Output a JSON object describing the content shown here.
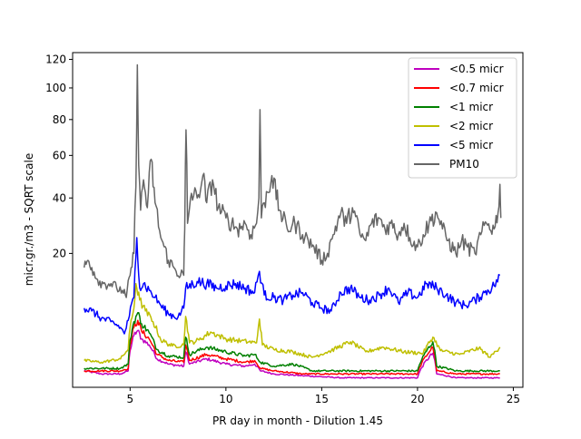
{
  "chart_data": {
    "type": "line",
    "title": "",
    "xlabel": "PR day in month - Dilution 1.45",
    "ylabel": "micr.gr./m3 - SQRT scale",
    "y_scale": "sqrt",
    "xlim": [
      2.0,
      25.5
    ],
    "ylim": [
      0,
      125
    ],
    "x_ticks": [
      5,
      10,
      15,
      20,
      25
    ],
    "y_ticks": [
      20,
      40,
      60,
      80,
      100,
      120
    ],
    "grid": false,
    "legend_position": "top-right",
    "series": [
      {
        "name": "<0.5 micr",
        "color": "#bf00bf",
        "points": [
          [
            2.6,
            0.3
          ],
          [
            3.5,
            0.2
          ],
          [
            4.5,
            0.2
          ],
          [
            4.9,
            0.3
          ],
          [
            5.0,
            1.5
          ],
          [
            5.2,
            3.0
          ],
          [
            5.4,
            3.6
          ],
          [
            5.6,
            2.6
          ],
          [
            6.0,
            2.0
          ],
          [
            6.4,
            0.9
          ],
          [
            7.0,
            0.6
          ],
          [
            7.8,
            0.5
          ],
          [
            7.9,
            1.4
          ],
          [
            8.1,
            0.6
          ],
          [
            9.0,
            0.9
          ],
          [
            10.0,
            0.6
          ],
          [
            11.0,
            0.5
          ],
          [
            11.5,
            0.6
          ],
          [
            11.8,
            0.3
          ],
          [
            12.5,
            0.2
          ],
          [
            14.0,
            0.15
          ],
          [
            16.0,
            0.1
          ],
          [
            18.0,
            0.1
          ],
          [
            20.0,
            0.1
          ],
          [
            20.8,
            1.3
          ],
          [
            21.0,
            0.2
          ],
          [
            22.0,
            0.1
          ],
          [
            24.3,
            0.1
          ]
        ]
      },
      {
        "name": "<0.7 micr",
        "color": "#ff0000",
        "points": [
          [
            2.6,
            0.3
          ],
          [
            3.5,
            0.3
          ],
          [
            4.5,
            0.3
          ],
          [
            4.9,
            0.4
          ],
          [
            5.0,
            2.0
          ],
          [
            5.2,
            4.0
          ],
          [
            5.4,
            5.0
          ],
          [
            5.6,
            3.5
          ],
          [
            6.0,
            2.6
          ],
          [
            6.4,
            1.2
          ],
          [
            7.0,
            0.8
          ],
          [
            7.8,
            0.7
          ],
          [
            7.9,
            2.0
          ],
          [
            8.1,
            0.8
          ],
          [
            9.0,
            1.2
          ],
          [
            10.0,
            0.9
          ],
          [
            11.0,
            0.7
          ],
          [
            11.5,
            0.8
          ],
          [
            11.8,
            0.4
          ],
          [
            12.5,
            0.3
          ],
          [
            14.0,
            0.2
          ],
          [
            16.0,
            0.2
          ],
          [
            18.0,
            0.2
          ],
          [
            20.0,
            0.2
          ],
          [
            20.8,
            1.8
          ],
          [
            21.0,
            0.3
          ],
          [
            22.0,
            0.2
          ],
          [
            24.3,
            0.2
          ]
        ]
      },
      {
        "name": "<1 micr",
        "color": "#008000",
        "points": [
          [
            2.6,
            0.4
          ],
          [
            3.5,
            0.4
          ],
          [
            4.5,
            0.4
          ],
          [
            4.9,
            0.6
          ],
          [
            5.0,
            2.5
          ],
          [
            5.2,
            4.8
          ],
          [
            5.4,
            6.2
          ],
          [
            5.6,
            4.5
          ],
          [
            6.0,
            3.3
          ],
          [
            6.4,
            1.6
          ],
          [
            7.0,
            1.1
          ],
          [
            7.8,
            1.0
          ],
          [
            7.9,
            2.8
          ],
          [
            8.1,
            1.2
          ],
          [
            9.0,
            1.8
          ],
          [
            10.0,
            1.4
          ],
          [
            11.0,
            1.1
          ],
          [
            11.5,
            1.2
          ],
          [
            11.8,
            0.7
          ],
          [
            12.5,
            0.5
          ],
          [
            13.5,
            0.6
          ],
          [
            14.5,
            0.3
          ],
          [
            16.0,
            0.3
          ],
          [
            18.0,
            0.3
          ],
          [
            20.0,
            0.3
          ],
          [
            20.8,
            2.3
          ],
          [
            21.0,
            0.5
          ],
          [
            22.0,
            0.3
          ],
          [
            24.3,
            0.3
          ]
        ]
      },
      {
        "name": "<2 micr",
        "color": "#bfbf00",
        "points": [
          [
            2.6,
            0.8
          ],
          [
            3.5,
            0.7
          ],
          [
            4.5,
            0.9
          ],
          [
            4.9,
            1.6
          ],
          [
            5.0,
            4.0
          ],
          [
            5.2,
            7.0
          ],
          [
            5.3,
            12.0
          ],
          [
            5.5,
            8.5
          ],
          [
            5.8,
            6.5
          ],
          [
            6.2,
            4.8
          ],
          [
            6.6,
            2.5
          ],
          [
            7.2,
            1.9
          ],
          [
            7.8,
            2.0
          ],
          [
            7.9,
            5.6
          ],
          [
            8.1,
            2.2
          ],
          [
            8.6,
            2.5
          ],
          [
            9.2,
            3.4
          ],
          [
            10.0,
            2.6
          ],
          [
            10.8,
            2.4
          ],
          [
            11.6,
            2.2
          ],
          [
            11.75,
            5.2
          ],
          [
            11.9,
            2.0
          ],
          [
            12.5,
            1.6
          ],
          [
            13.5,
            1.4
          ],
          [
            14.5,
            1.0
          ],
          [
            15.5,
            1.5
          ],
          [
            16.5,
            2.3
          ],
          [
            17.3,
            1.4
          ],
          [
            18.2,
            1.8
          ],
          [
            19.3,
            1.4
          ],
          [
            20.3,
            1.3
          ],
          [
            20.8,
            2.8
          ],
          [
            21.2,
            1.5
          ],
          [
            22.2,
            1.2
          ],
          [
            23.2,
            1.7
          ],
          [
            23.8,
            1.0
          ],
          [
            24.3,
            1.8
          ]
        ]
      },
      {
        "name": "<5 micr",
        "color": "#0000ff",
        "points": [
          [
            2.6,
            7.0
          ],
          [
            3.0,
            6.5
          ],
          [
            3.5,
            5.3
          ],
          [
            4.0,
            4.8
          ],
          [
            4.5,
            4.0
          ],
          [
            4.7,
            3.2
          ],
          [
            4.9,
            5.0
          ],
          [
            5.2,
            9.0
          ],
          [
            5.35,
            25.0
          ],
          [
            5.5,
            11.0
          ],
          [
            5.7,
            12.0
          ],
          [
            6.0,
            10.5
          ],
          [
            6.3,
            9.0
          ],
          [
            6.6,
            7.5
          ],
          [
            7.0,
            6.0
          ],
          [
            7.5,
            5.5
          ],
          [
            7.8,
            7.0
          ],
          [
            7.9,
            11.0
          ],
          [
            8.5,
            12.5
          ],
          [
            9.0,
            12.0
          ],
          [
            9.5,
            11.0
          ],
          [
            10.0,
            11.5
          ],
          [
            10.5,
            12.0
          ],
          [
            11.0,
            11.0
          ],
          [
            11.5,
            10.0
          ],
          [
            11.75,
            15.0
          ],
          [
            12.0,
            9.5
          ],
          [
            12.5,
            9.0
          ],
          [
            13.0,
            8.5
          ],
          [
            13.5,
            9.5
          ],
          [
            14.0,
            10.0
          ],
          [
            14.5,
            8.0
          ],
          [
            15.0,
            7.0
          ],
          [
            15.5,
            6.5
          ],
          [
            16.0,
            10.0
          ],
          [
            16.5,
            11.0
          ],
          [
            17.0,
            9.0
          ],
          [
            17.5,
            8.5
          ],
          [
            18.0,
            9.5
          ],
          [
            18.5,
            11.0
          ],
          [
            19.0,
            8.0
          ],
          [
            19.5,
            10.0
          ],
          [
            20.0,
            9.0
          ],
          [
            20.5,
            12.0
          ],
          [
            21.0,
            11.0
          ],
          [
            21.5,
            9.5
          ],
          [
            22.0,
            8.0
          ],
          [
            22.5,
            7.5
          ],
          [
            23.0,
            8.5
          ],
          [
            23.5,
            10.0
          ],
          [
            24.0,
            11.5
          ],
          [
            24.3,
            14.0
          ]
        ]
      },
      {
        "name": "PM10",
        "color": "#666666",
        "points": [
          [
            2.6,
            16.0
          ],
          [
            2.8,
            18.0
          ],
          [
            3.0,
            16.0
          ],
          [
            3.3,
            13.0
          ],
          [
            3.6,
            12.0
          ],
          [
            4.0,
            12.0
          ],
          [
            4.3,
            11.0
          ],
          [
            4.6,
            10.5
          ],
          [
            4.8,
            9.0
          ],
          [
            5.0,
            14.0
          ],
          [
            5.2,
            20.0
          ],
          [
            5.3,
            45.0
          ],
          [
            5.38,
            116.0
          ],
          [
            5.45,
            55.0
          ],
          [
            5.55,
            35.0
          ],
          [
            5.7,
            48.0
          ],
          [
            5.9,
            36.0
          ],
          [
            6.1,
            58.0
          ],
          [
            6.3,
            38.0
          ],
          [
            6.6,
            25.0
          ],
          [
            7.0,
            18.0
          ],
          [
            7.4,
            15.0
          ],
          [
            7.8,
            14.0
          ],
          [
            7.85,
            28.0
          ],
          [
            7.92,
            74.0
          ],
          [
            8.0,
            30.0
          ],
          [
            8.2,
            42.0
          ],
          [
            8.5,
            40.0
          ],
          [
            8.8,
            50.0
          ],
          [
            9.0,
            38.0
          ],
          [
            9.3,
            48.0
          ],
          [
            9.6,
            36.0
          ],
          [
            10.0,
            32.0
          ],
          [
            10.3,
            30.0
          ],
          [
            10.6,
            28.0
          ],
          [
            11.0,
            30.0
          ],
          [
            11.3,
            26.0
          ],
          [
            11.6,
            30.0
          ],
          [
            11.72,
            40.0
          ],
          [
            11.78,
            86.0
          ],
          [
            11.85,
            32.0
          ],
          [
            12.0,
            38.0
          ],
          [
            12.4,
            50.0
          ],
          [
            12.8,
            35.0
          ],
          [
            13.2,
            28.0
          ],
          [
            13.6,
            30.0
          ],
          [
            14.0,
            26.0
          ],
          [
            14.3,
            24.0
          ],
          [
            14.6,
            22.0
          ],
          [
            15.0,
            18.0
          ],
          [
            15.3,
            20.0
          ],
          [
            15.6,
            26.0
          ],
          [
            16.0,
            34.0
          ],
          [
            16.3,
            30.0
          ],
          [
            16.6,
            36.0
          ],
          [
            17.0,
            26.0
          ],
          [
            17.3,
            24.0
          ],
          [
            17.6,
            30.0
          ],
          [
            18.0,
            32.0
          ],
          [
            18.3,
            28.0
          ],
          [
            18.6,
            30.0
          ],
          [
            19.0,
            26.0
          ],
          [
            19.3,
            30.0
          ],
          [
            19.6,
            25.0
          ],
          [
            20.0,
            22.0
          ],
          [
            20.3,
            26.0
          ],
          [
            20.6,
            30.0
          ],
          [
            21.0,
            34.0
          ],
          [
            21.3,
            28.0
          ],
          [
            21.6,
            24.0
          ],
          [
            22.0,
            20.0
          ],
          [
            22.3,
            24.0
          ],
          [
            22.6,
            22.0
          ],
          [
            23.0,
            20.0
          ],
          [
            23.3,
            26.0
          ],
          [
            23.6,
            30.0
          ],
          [
            24.0,
            28.0
          ],
          [
            24.2,
            34.0
          ],
          [
            24.3,
            46.0
          ],
          [
            24.35,
            32.0
          ]
        ]
      }
    ]
  }
}
